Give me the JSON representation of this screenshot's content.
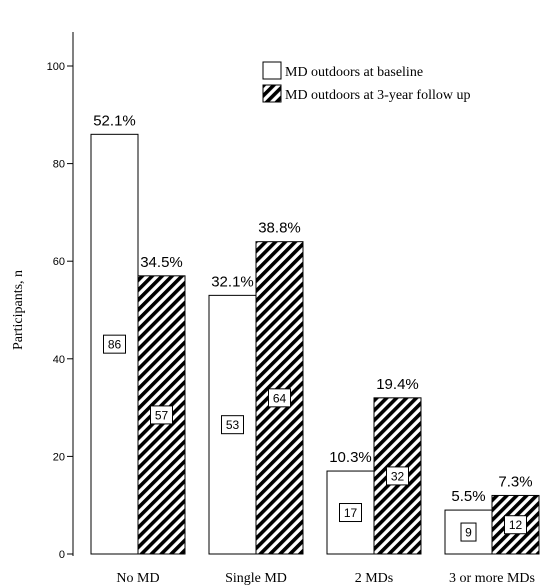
{
  "chart_data": {
    "type": "bar",
    "ylabel": "Participants, n",
    "ylim": [
      0,
      100
    ],
    "yticks": [
      0,
      20,
      40,
      60,
      80,
      100
    ],
    "categories": [
      "No MD",
      "Single MD",
      "2 MDs",
      "3 or more MDs"
    ],
    "series": [
      {
        "name": "MD outdoors at baseline",
        "fill": "white",
        "values": [
          86,
          53,
          17,
          9
        ],
        "percent_labels": [
          "52.1%",
          "32.1%",
          "10.3%",
          "5.5%"
        ]
      },
      {
        "name": "MD outdoors at 3-year follow up",
        "fill": "diagonal-hatch",
        "values": [
          57,
          64,
          32,
          12
        ],
        "percent_labels": [
          "34.5%",
          "38.8%",
          "19.4%",
          "7.3%"
        ]
      }
    ],
    "legend": "top-right",
    "grid": false,
    "colors": {
      "stroke": "#000000",
      "hatch": "#000000",
      "background": "#ffffff"
    }
  }
}
